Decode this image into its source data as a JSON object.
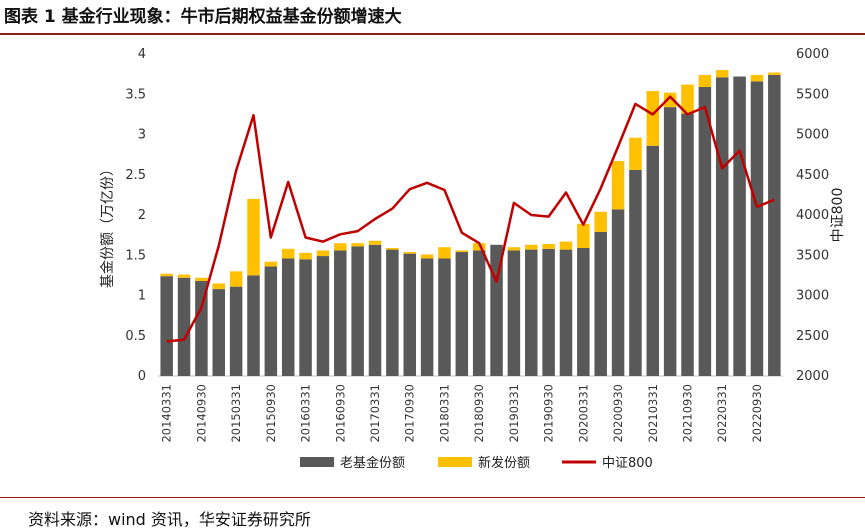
{
  "figure": {
    "title": "图表 1  基金行业现象：牛市后期权益基金份额增速大",
    "source": "资料来源：wind 资讯，华安证券研究所"
  },
  "colors": {
    "old": "#595959",
    "new": "#ffc000",
    "index": "#c00000"
  },
  "chart_data": {
    "type": "bar",
    "stacked": true,
    "categories": [
      "20140331",
      "20140630",
      "20140930",
      "20141231",
      "20150331",
      "20150630",
      "20150930",
      "20151231",
      "20160331",
      "20160630",
      "20160930",
      "20161231",
      "20170331",
      "20170630",
      "20170930",
      "20171231",
      "20180331",
      "20180630",
      "20180930",
      "20181231",
      "20190331",
      "20190630",
      "20190930",
      "20191231",
      "20200331",
      "20200630",
      "20200930",
      "20201231",
      "20210331",
      "20210630",
      "20210930",
      "20211231",
      "20220331",
      "20220630",
      "20220930",
      "20221231"
    ],
    "x_tick_labels": [
      "20140331",
      "20140930",
      "20150331",
      "20150930",
      "20160331",
      "20160930",
      "20170331",
      "20170930",
      "20180331",
      "20180930",
      "20190331",
      "20190930",
      "20200331",
      "20200930",
      "20210331",
      "20210930",
      "20220331",
      "20220930"
    ],
    "series": [
      {
        "name": "老基金份额",
        "type": "bar",
        "axis": "left",
        "values": [
          1.24,
          1.22,
          1.18,
          1.08,
          1.11,
          1.25,
          1.36,
          1.46,
          1.45,
          1.49,
          1.56,
          1.61,
          1.63,
          1.57,
          1.52,
          1.46,
          1.46,
          1.54,
          1.56,
          1.63,
          1.56,
          1.57,
          1.58,
          1.57,
          1.59,
          1.79,
          2.07,
          2.56,
          2.86,
          3.34,
          3.26,
          3.59,
          3.71,
          3.72,
          3.66,
          3.74
        ]
      },
      {
        "name": "新发份额",
        "type": "bar",
        "axis": "left",
        "values": [
          0.03,
          0.04,
          0.04,
          0.07,
          0.19,
          0.95,
          0.06,
          0.12,
          0.08,
          0.07,
          0.09,
          0.04,
          0.05,
          0.02,
          0.02,
          0.05,
          0.14,
          0.02,
          0.09,
          0.0,
          0.04,
          0.06,
          0.06,
          0.1,
          0.3,
          0.25,
          0.6,
          0.4,
          0.68,
          0.18,
          0.36,
          0.15,
          0.09,
          0.0,
          0.08,
          0.03
        ]
      },
      {
        "name": "中证800",
        "type": "line",
        "axis": "right",
        "values": [
          2430,
          2450,
          2850,
          3620,
          4550,
          5240,
          3720,
          4410,
          3720,
          3670,
          3760,
          3800,
          3950,
          4080,
          4320,
          4400,
          4310,
          3780,
          3650,
          3170,
          4150,
          4000,
          3980,
          4280,
          3880,
          4330,
          4850,
          5380,
          5250,
          5470,
          5250,
          5340,
          4580,
          4800,
          4100,
          4190
        ]
      }
    ],
    "y_left": {
      "label": "基金份额（万亿份）",
      "min": 0,
      "max": 4,
      "ticks": [
        "0",
        "0.5",
        "1",
        "1.5",
        "2",
        "2.5",
        "3",
        "3.5",
        "4"
      ]
    },
    "y_right": {
      "label": "中证800",
      "min": 2000,
      "max": 6000,
      "ticks": [
        "2000",
        "2500",
        "3000",
        "3500",
        "4000",
        "4500",
        "5000",
        "5500",
        "6000"
      ]
    },
    "grid": false,
    "legend_position": "bottom"
  }
}
